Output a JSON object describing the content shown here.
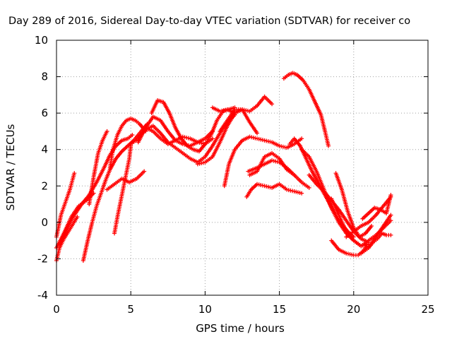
{
  "chart_data": {
    "type": "scatter",
    "title": "Day 289 of 2016, Sidereal Day-to-day VTEC variation (SDTVAR) for receiver co",
    "xlabel": "GPS time / hours",
    "ylabel": "SDTVAR / TECUs",
    "xlim": [
      0,
      25
    ],
    "ylim": [
      -4,
      10
    ],
    "xticks": [
      0,
      5,
      10,
      15,
      20,
      25
    ],
    "yticks": [
      -4,
      -2,
      0,
      2,
      4,
      6,
      8,
      10
    ],
    "xtick_labels": [
      "0",
      "5",
      "10",
      "15",
      "20",
      "25"
    ],
    "ytick_labels": [
      "-4",
      "-2",
      "0",
      "2",
      "4",
      "6",
      "8",
      "10"
    ],
    "grid": true,
    "marker": "+",
    "color": "#ff0000",
    "series": [
      {
        "x": [
          0.0,
          0.3,
          0.6,
          0.9,
          1.2
        ],
        "y": [
          -0.8,
          0.4,
          1.1,
          1.8,
          2.7
        ]
      },
      {
        "x": [
          0.0,
          0.2,
          0.5,
          0.8,
          1.1,
          1.4
        ],
        "y": [
          -2.1,
          -1.4,
          -0.9,
          -0.5,
          -0.1,
          0.3
        ]
      },
      {
        "x": [
          0.0,
          0.5,
          1.0,
          1.5,
          2.0,
          2.5
        ],
        "y": [
          -1.4,
          -0.6,
          0.3,
          0.9,
          1.2,
          1.6
        ]
      },
      {
        "x": [
          0.2,
          0.7,
          1.2,
          1.7,
          2.2,
          2.7,
          3.2,
          3.6,
          4.0,
          4.4,
          4.8,
          5.1
        ],
        "y": [
          -1.2,
          -0.3,
          0.4,
          1.0,
          1.5,
          2.2,
          3.0,
          3.7,
          4.2,
          4.5,
          4.6,
          4.8
        ]
      },
      {
        "x": [
          1.8,
          2.1,
          2.4,
          2.7,
          3.0,
          3.3,
          3.6,
          4.0,
          4.4,
          4.8,
          5.2,
          5.7,
          6.1
        ],
        "y": [
          -2.1,
          -1.0,
          0.0,
          0.9,
          1.6,
          2.3,
          2.9,
          3.5,
          3.9,
          4.2,
          4.5,
          5.0,
          5.4
        ]
      },
      {
        "x": [
          2.2,
          2.5,
          2.8,
          3.1,
          3.4
        ],
        "y": [
          1.0,
          2.5,
          3.8,
          4.5,
          5.0
        ]
      },
      {
        "x": [
          3.6,
          3.8,
          4.1,
          4.4,
          4.7,
          5.0,
          5.3,
          5.6,
          6.0
        ],
        "y": [
          3.0,
          4.0,
          4.8,
          5.3,
          5.6,
          5.7,
          5.6,
          5.4,
          5.0
        ]
      },
      {
        "x": [
          3.4,
          3.9,
          4.4,
          4.9,
          5.4,
          5.9
        ],
        "y": [
          1.8,
          2.1,
          2.4,
          2.2,
          2.4,
          2.8
        ]
      },
      {
        "x": [
          3.9,
          4.1,
          4.3,
          4.5,
          4.7,
          4.9,
          5.0
        ],
        "y": [
          -0.6,
          0.3,
          1.1,
          1.9,
          2.7,
          3.5,
          4.2
        ]
      },
      {
        "x": [
          5.0,
          5.5,
          6.0,
          6.5,
          7.0,
          7.5,
          8.0,
          8.5,
          9.0,
          9.5,
          10.0,
          10.5,
          11.0,
          11.5,
          12.0
        ],
        "y": [
          4.3,
          4.6,
          5.1,
          5.3,
          4.9,
          4.4,
          4.1,
          3.8,
          3.5,
          3.3,
          3.6,
          4.2,
          4.9,
          5.5,
          5.9
        ]
      },
      {
        "x": [
          5.5,
          6.0,
          6.5,
          7.0,
          7.5,
          8.0,
          8.5,
          9.0,
          9.5,
          10.0,
          10.5
        ],
        "y": [
          4.4,
          5.2,
          5.8,
          5.6,
          5.0,
          4.5,
          4.3,
          4.2,
          4.4,
          4.6,
          5.0
        ]
      },
      {
        "x": [
          6.4,
          6.8,
          7.2,
          7.6,
          8.0,
          8.4,
          8.8,
          9.2,
          9.6,
          10.0,
          10.4,
          10.8,
          11.2,
          11.6,
          12.0
        ],
        "y": [
          6.0,
          6.7,
          6.6,
          6.0,
          5.2,
          4.6,
          4.2,
          4.0,
          3.9,
          4.3,
          4.8,
          5.6,
          6.1,
          6.2,
          6.3
        ]
      },
      {
        "x": [
          6.0,
          6.5,
          7.0,
          7.5,
          8.0,
          8.5,
          9.0,
          9.5,
          10.0,
          10.5
        ],
        "y": [
          5.2,
          5.0,
          4.6,
          4.3,
          4.5,
          4.7,
          4.6,
          4.4,
          4.3,
          4.6
        ]
      },
      {
        "x": [
          9.5,
          10.0,
          10.5,
          11.0,
          11.5,
          12.0
        ],
        "y": [
          3.2,
          3.3,
          3.6,
          4.4,
          5.3,
          6.0
        ]
      },
      {
        "x": [
          10.5,
          11.0,
          11.5,
          12.0,
          12.5,
          13.0,
          13.5,
          14.0,
          14.5
        ],
        "y": [
          6.3,
          6.1,
          6.2,
          6.0,
          6.2,
          6.1,
          6.4,
          6.9,
          6.5
        ]
      },
      {
        "x": [
          11.3,
          11.6,
          12.0,
          12.5,
          13.0,
          13.5,
          14.0,
          14.5,
          15.0,
          15.5,
          16.0,
          16.5
        ],
        "y": [
          2.0,
          3.2,
          4.0,
          4.5,
          4.7,
          4.6,
          4.5,
          4.4,
          4.2,
          4.1,
          4.3,
          4.6
        ]
      },
      {
        "x": [
          11.0,
          11.5,
          12.0,
          12.5,
          13.0,
          13.5
        ],
        "y": [
          5.0,
          5.6,
          6.2,
          6.2,
          5.5,
          4.9
        ]
      },
      {
        "x": [
          12.8,
          13.1,
          13.5,
          14.0,
          14.5,
          15.0,
          15.5,
          16.0,
          16.5
        ],
        "y": [
          1.4,
          1.8,
          2.1,
          2.0,
          1.9,
          2.1,
          1.8,
          1.7,
          1.6
        ]
      },
      {
        "x": [
          12.9,
          13.5,
          14.0,
          14.5,
          15.0,
          15.5,
          16.0,
          16.5,
          17.0
        ],
        "y": [
          2.8,
          3.0,
          3.2,
          3.4,
          3.3,
          3.0,
          2.6,
          2.2,
          1.9
        ]
      },
      {
        "x": [
          13.0,
          13.5,
          14.0,
          14.5,
          15.0,
          15.5,
          16.0
        ],
        "y": [
          2.6,
          2.8,
          3.6,
          3.8,
          3.5,
          2.9,
          2.6
        ]
      },
      {
        "x": [
          15.3,
          15.6,
          15.9,
          16.2,
          16.6,
          17.0,
          17.4,
          17.8,
          18.1,
          18.3
        ],
        "y": [
          7.9,
          8.1,
          8.2,
          8.1,
          7.8,
          7.3,
          6.6,
          5.9,
          4.9,
          4.2
        ]
      },
      {
        "x": [
          15.7,
          16.0,
          16.4,
          16.8,
          17.2,
          17.6,
          18.0,
          18.4,
          18.8,
          19.2,
          19.6,
          20.0
        ],
        "y": [
          4.3,
          4.6,
          4.2,
          3.5,
          2.8,
          2.2,
          1.6,
          1.0,
          0.4,
          -0.1,
          -0.5,
          -0.8
        ]
      },
      {
        "x": [
          16.5,
          17.0,
          17.5,
          18.0,
          18.5,
          19.0,
          19.5,
          20.0,
          20.5,
          21.0
        ],
        "y": [
          4.0,
          3.6,
          2.8,
          1.8,
          0.8,
          0.0,
          -0.6,
          -1.0,
          -1.3,
          -1.2
        ]
      },
      {
        "x": [
          17.0,
          17.5,
          18.0,
          18.5,
          19.0,
          19.5,
          20.0,
          20.5,
          21.0
        ],
        "y": [
          2.6,
          2.1,
          1.7,
          1.2,
          0.7,
          0.1,
          -0.5,
          -0.9,
          -1.1
        ]
      },
      {
        "x": [
          18.5,
          19.0,
          19.5,
          20.0,
          20.5,
          21.0,
          21.5,
          22.0,
          22.5
        ],
        "y": [
          1.3,
          0.4,
          -0.5,
          -1.0,
          -1.3,
          -1.0,
          -0.7,
          -0.3,
          0.1
        ]
      },
      {
        "x": [
          18.8,
          19.2,
          19.6,
          20.0,
          20.4,
          20.8,
          21.2
        ],
        "y": [
          2.7,
          1.8,
          0.6,
          -0.3,
          -0.8,
          -0.6,
          -0.2
        ]
      },
      {
        "x": [
          18.5,
          19.0,
          19.5,
          20.0,
          20.3,
          20.6,
          20.9
        ],
        "y": [
          -1.0,
          -1.5,
          -1.7,
          -1.8,
          -1.8,
          -1.6,
          -1.3
        ]
      },
      {
        "x": [
          19.5,
          20.0,
          20.5,
          21.0,
          21.5,
          22.0,
          22.5
        ],
        "y": [
          -0.8,
          -0.5,
          -0.2,
          0.0,
          0.4,
          0.9,
          1.4
        ]
      },
      {
        "x": [
          20.5,
          21.0,
          21.5,
          22.0,
          22.5
        ],
        "y": [
          -1.7,
          -1.4,
          -0.8,
          -0.2,
          0.4
        ]
      },
      {
        "x": [
          21.0,
          21.3,
          21.6,
          21.9,
          22.2,
          22.5
        ],
        "y": [
          -1.4,
          -1.1,
          -0.9,
          -0.6,
          -0.7,
          -0.7
        ]
      },
      {
        "x": [
          20.6,
          21.0,
          21.4,
          21.8,
          22.2,
          22.5
        ],
        "y": [
          0.2,
          0.5,
          0.8,
          0.7,
          0.5,
          1.5
        ]
      }
    ]
  }
}
